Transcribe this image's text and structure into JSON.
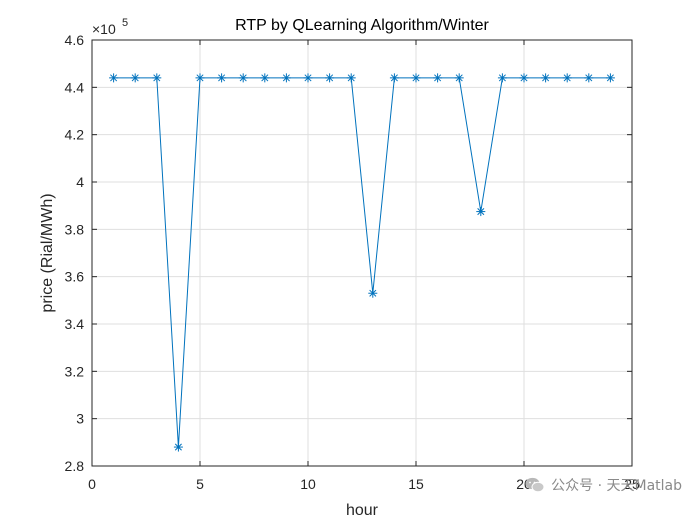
{
  "chart_data": {
    "type": "line",
    "title": "RTP by QLearning Algorithm/Winter",
    "xlabel": "hour",
    "ylabel": "price (Rial/MWh)",
    "xlim": [
      0,
      25
    ],
    "ylim": [
      2.8,
      4.6
    ],
    "y_exponent_label": "×10",
    "y_exponent_power": "5",
    "xticks": [
      0,
      5,
      10,
      15,
      20,
      25
    ],
    "xtick_labels": [
      "0",
      "5",
      "10",
      "15",
      "20",
      "25"
    ],
    "yticks": [
      2.8,
      3.0,
      3.2,
      3.4,
      3.6,
      3.8,
      4.0,
      4.2,
      4.4,
      4.6
    ],
    "ytick_labels": [
      "2.8",
      "3",
      "3.2",
      "3.4",
      "3.6",
      "3.8",
      "4",
      "4.2",
      "4.4",
      "4.6"
    ],
    "grid": true,
    "series": [
      {
        "marker": "asterisk",
        "color": "#0072BD",
        "x": [
          1,
          2,
          3,
          4,
          5,
          6,
          7,
          8,
          9,
          10,
          11,
          12,
          13,
          14,
          15,
          16,
          17,
          18,
          19,
          20,
          21,
          22,
          23,
          24
        ],
        "values": [
          4.44,
          4.44,
          4.44,
          2.88,
          4.44,
          4.44,
          4.44,
          4.44,
          4.44,
          4.44,
          4.44,
          4.44,
          3.53,
          4.44,
          4.44,
          4.44,
          4.44,
          3.875,
          4.44,
          4.44,
          4.44,
          4.44,
          4.44,
          4.44
        ]
      }
    ]
  },
  "watermark": {
    "text": "公众号 · 天天Matlab",
    "icon": "wechat-icon"
  }
}
